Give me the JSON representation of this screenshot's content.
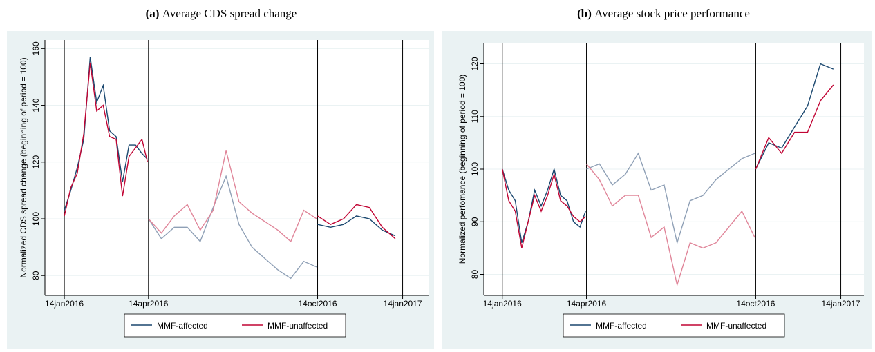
{
  "chart_data": [
    {
      "type": "line",
      "label": "(a)",
      "title": "Average CDS spread change",
      "ylabel": "Normalized CDS spread change (beginning of period = 100)",
      "x": [
        "2016-01-14",
        "2016-01-21",
        "2016-01-28",
        "2016-02-04",
        "2016-02-11",
        "2016-02-18",
        "2016-02-25",
        "2016-03-03",
        "2016-03-10",
        "2016-03-17",
        "2016-03-24",
        "2016-03-31",
        "2016-04-07",
        "2016-04-13",
        "2016-04-14",
        "2016-04-28",
        "2016-05-12",
        "2016-05-26",
        "2016-06-09",
        "2016-06-23",
        "2016-07-07",
        "2016-07-21",
        "2016-08-04",
        "2016-08-18",
        "2016-09-01",
        "2016-09-15",
        "2016-09-29",
        "2016-10-13",
        "2016-10-14",
        "2016-10-28",
        "2016-11-11",
        "2016-11-25",
        "2016-12-09",
        "2016-12-23",
        "2017-01-06",
        "2017-01-14"
      ],
      "series": [
        {
          "name": "MMF-affected",
          "color": "#1a476f",
          "faded_color": "#8fa0b6",
          "values": [
            103,
            110,
            118,
            128,
            157,
            141,
            147,
            131,
            129,
            113,
            126,
            126,
            123,
            121,
            100,
            93,
            97,
            97,
            92,
            104,
            115,
            98,
            90,
            86,
            82,
            79,
            85,
            83,
            98,
            97,
            98,
            101,
            100,
            96,
            94,
            94
          ]
        },
        {
          "name": "MMF-unaffected",
          "color": "#c10534",
          "faded_color": "#e08599",
          "values": [
            101,
            111,
            116,
            130,
            155,
            138,
            140,
            129,
            128,
            108,
            122,
            125,
            128,
            120,
            100,
            95,
            101,
            105,
            96,
            103,
            124,
            106,
            102,
            99,
            96,
            92,
            103,
            100,
            101,
            98,
            100,
            105,
            104,
            97,
            93,
            93
          ]
        }
      ],
      "faded_between": [
        "2016-04-14",
        "2016-10-14"
      ],
      "xlim": [
        "2015-12-24",
        "2017-02-11"
      ],
      "xticks": [
        {
          "value": "2016-01-14",
          "label": "14jan2016"
        },
        {
          "value": "2016-04-14",
          "label": "14apr2016"
        },
        {
          "value": "2016-10-14",
          "label": "14oct2016"
        },
        {
          "value": "2017-01-14",
          "label": "14jan2017"
        }
      ],
      "ylim": [
        73,
        163
      ],
      "yticks": [
        80,
        100,
        120,
        140,
        160
      ],
      "grid": true
    },
    {
      "type": "line",
      "label": "(b)",
      "title": "Average stock price performance",
      "ylabel": "Normalized perfomance (beginning of period = 100)",
      "x": [
        "2016-01-14",
        "2016-01-21",
        "2016-01-28",
        "2016-02-04",
        "2016-02-11",
        "2016-02-18",
        "2016-02-25",
        "2016-03-03",
        "2016-03-10",
        "2016-03-17",
        "2016-03-24",
        "2016-03-31",
        "2016-04-07",
        "2016-04-13",
        "2016-04-14",
        "2016-04-28",
        "2016-05-12",
        "2016-05-26",
        "2016-06-09",
        "2016-06-23",
        "2016-07-07",
        "2016-07-21",
        "2016-08-04",
        "2016-08-18",
        "2016-09-01",
        "2016-09-15",
        "2016-09-29",
        "2016-10-13",
        "2016-10-14",
        "2016-10-28",
        "2016-11-11",
        "2016-11-25",
        "2016-12-09",
        "2016-12-23",
        "2017-01-06",
        "2017-01-14"
      ],
      "series": [
        {
          "name": "MMF-affected",
          "color": "#1a476f",
          "faded_color": "#8fa0b6",
          "values": [
            100,
            96,
            94,
            86,
            90,
            96,
            93,
            96,
            100,
            95,
            94,
            90,
            89,
            92,
            100,
            101,
            97,
            99,
            103,
            96,
            97,
            86,
            94,
            95,
            98,
            100,
            102,
            103,
            100,
            105,
            104,
            108,
            112,
            120,
            119,
            121
          ]
        },
        {
          "name": "MMF-unaffected",
          "color": "#c10534",
          "faded_color": "#e08599",
          "values": [
            100,
            94,
            92,
            85,
            90,
            95,
            92,
            95,
            99,
            94,
            93,
            91,
            90,
            91,
            101,
            98,
            93,
            95,
            95,
            87,
            89,
            78,
            86,
            85,
            86,
            89,
            92,
            87,
            100,
            106,
            103,
            107,
            107,
            113,
            116,
            116
          ]
        }
      ],
      "faded_between": [
        "2016-04-14",
        "2016-10-14"
      ],
      "xlim": [
        "2015-12-25",
        "2017-02-08"
      ],
      "xticks": [
        {
          "value": "2016-01-14",
          "label": "14jan2016"
        },
        {
          "value": "2016-04-14",
          "label": "14apr2016"
        },
        {
          "value": "2016-10-14",
          "label": "14oct2016"
        },
        {
          "value": "2017-01-14",
          "label": "14jan2017"
        }
      ],
      "ylim": [
        76,
        124
      ],
      "yticks": [
        80,
        90,
        100,
        110,
        120
      ],
      "grid": true
    }
  ]
}
